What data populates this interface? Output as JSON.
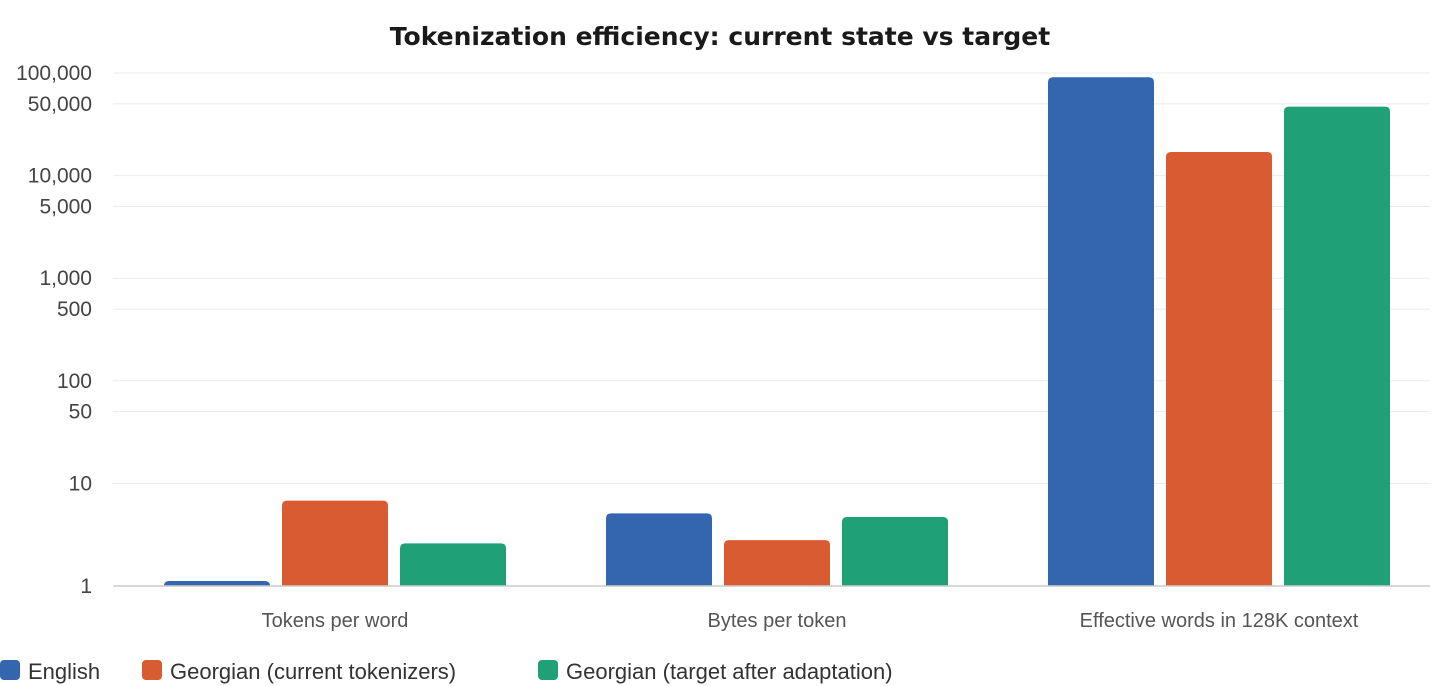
{
  "chart_data": {
    "type": "bar",
    "title": "Tokenization efficiency: current state vs target",
    "categories": [
      "Tokens per word",
      "Bytes per token",
      "Effective words in 128K context"
    ],
    "series": [
      {
        "name": "English",
        "color": "#3366ae",
        "values": [
          1.12,
          5.1,
          91000
        ]
      },
      {
        "name": "Georgian (current tokenizers)",
        "color": "#d95b32",
        "values": [
          6.8,
          2.8,
          17000
        ]
      },
      {
        "name": "Georgian (target after adaptation)",
        "color": "#1fa076",
        "values": [
          2.6,
          4.7,
          47000
        ]
      }
    ],
    "y_scale": "log",
    "ylim": [
      1,
      100000
    ],
    "y_ticks": [
      {
        "value": 1,
        "label": "1"
      },
      {
        "value": 10,
        "label": "10"
      },
      {
        "value": 50,
        "label": "50"
      },
      {
        "value": 100,
        "label": "100"
      },
      {
        "value": 500,
        "label": "500"
      },
      {
        "value": 1000,
        "label": "1,000"
      },
      {
        "value": 5000,
        "label": "5,000"
      },
      {
        "value": 10000,
        "label": "10,000"
      },
      {
        "value": 50000,
        "label": "50,000"
      },
      {
        "value": 100000,
        "label": "100,000"
      }
    ],
    "grid": true,
    "legend_position": "bottom-left"
  }
}
